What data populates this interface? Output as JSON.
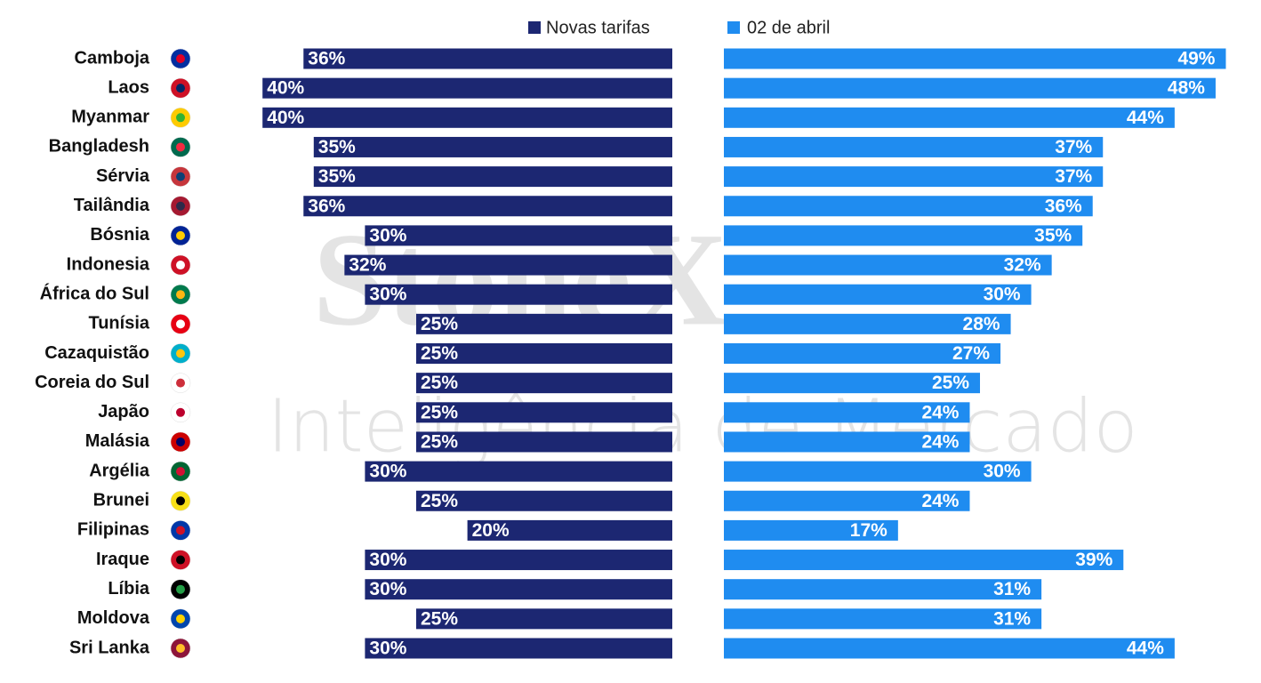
{
  "chart_data": {
    "type": "bar",
    "orientation": "horizontal",
    "watermark": [
      "StoneX",
      "Inteligência de Mercado"
    ],
    "categories": [
      "Camboja",
      "Laos",
      "Myanmar",
      "Bangladesh",
      "Sérvia",
      "Tailândia",
      "Bósnia",
      "Indonesia",
      "África do Sul",
      "Tunísia",
      "Cazaquistão",
      "Coreia do Sul",
      "Japão",
      "Malásia",
      "Argélia",
      "Brunei",
      "Filipinas",
      "Iraque",
      "Líbia",
      "Moldova",
      "Sri Lanka"
    ],
    "xlim": [
      0,
      50
    ],
    "series": [
      {
        "name": "Novas tarifas",
        "color": "#1c2772",
        "values": [
          36,
          40,
          40,
          35,
          35,
          36,
          30,
          32,
          30,
          25,
          25,
          25,
          25,
          25,
          30,
          25,
          20,
          30,
          30,
          25,
          30
        ],
        "value_labels": [
          "36%",
          "40%",
          "40%",
          "35%",
          "35%",
          "36%",
          "30%",
          "32%",
          "30%",
          "25%",
          "25%",
          "25%",
          "25%",
          "25%",
          "30%",
          "25%",
          "20%",
          "30%",
          "30%",
          "25%",
          "30%"
        ]
      },
      {
        "name": "02 de abril",
        "color": "#1f8cf0",
        "values": [
          49,
          48,
          44,
          37,
          37,
          36,
          35,
          32,
          30,
          28,
          27,
          25,
          24,
          24,
          30,
          24,
          17,
          39,
          31,
          31,
          44
        ],
        "value_labels": [
          "49%",
          "48%",
          "44%",
          "37%",
          "37%",
          "36%",
          "35%",
          "32%",
          "30%",
          "28%",
          "27%",
          "25%",
          "24%",
          "24%",
          "30%",
          "24%",
          "17%",
          "39%",
          "31%",
          "31%",
          "44%"
        ]
      }
    ]
  }
}
